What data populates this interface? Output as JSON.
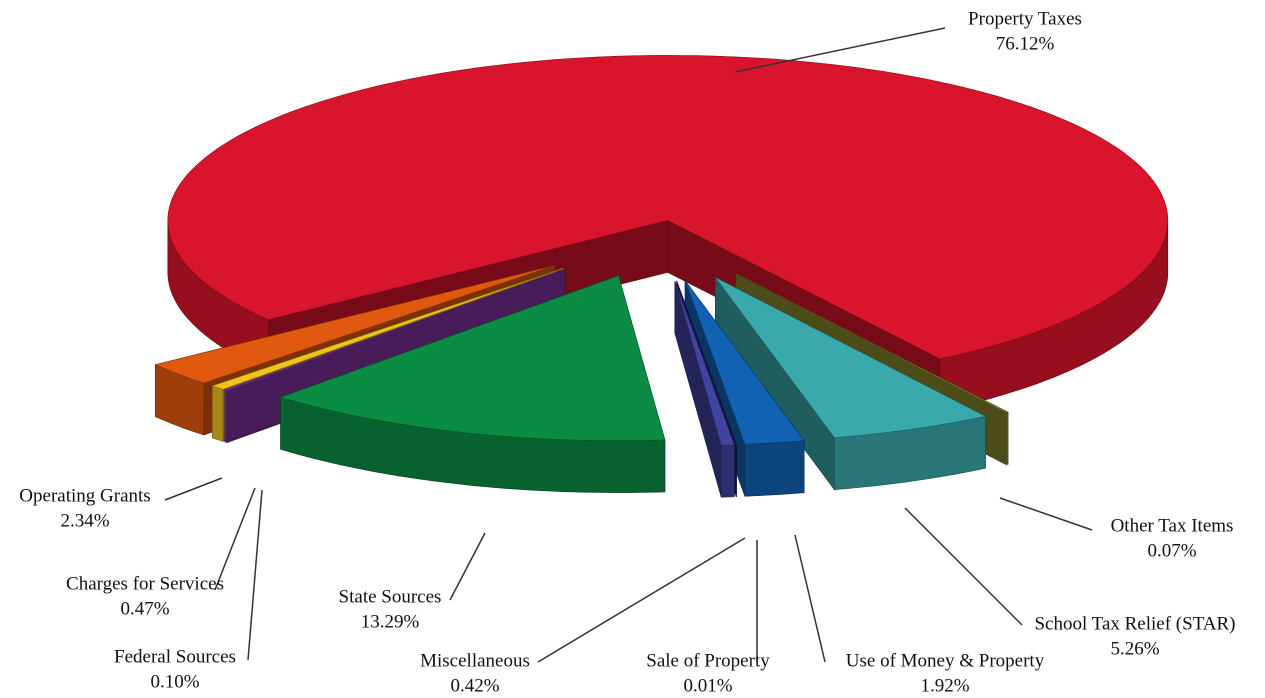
{
  "chart_data": {
    "type": "pie3d",
    "categories": [
      "Property Taxes",
      "Other Tax Items",
      "School Tax Relief (STAR)",
      "Use of Money & Property",
      "Sale of Property",
      "Miscellaneous",
      "State Sources",
      "Federal Sources",
      "Charges for Services",
      "Operating Grants"
    ],
    "values": [
      76.12,
      0.07,
      5.26,
      1.92,
      0.01,
      0.42,
      13.29,
      0.1,
      0.47,
      2.34
    ],
    "value_labels": [
      "76.12%",
      "0.07%",
      "5.26%",
      "1.92%",
      "0.01%",
      "0.42%",
      "13.29%",
      "0.10%",
      "0.47%",
      "2.34%"
    ],
    "colors": [
      "#d8152c",
      "#8a8a2c",
      "#3aa9ab",
      "#1162b3",
      "#23236e",
      "#4242a0",
      "#0b8c44",
      "#8232a2",
      "#f0c21e",
      "#e0590f"
    ]
  }
}
